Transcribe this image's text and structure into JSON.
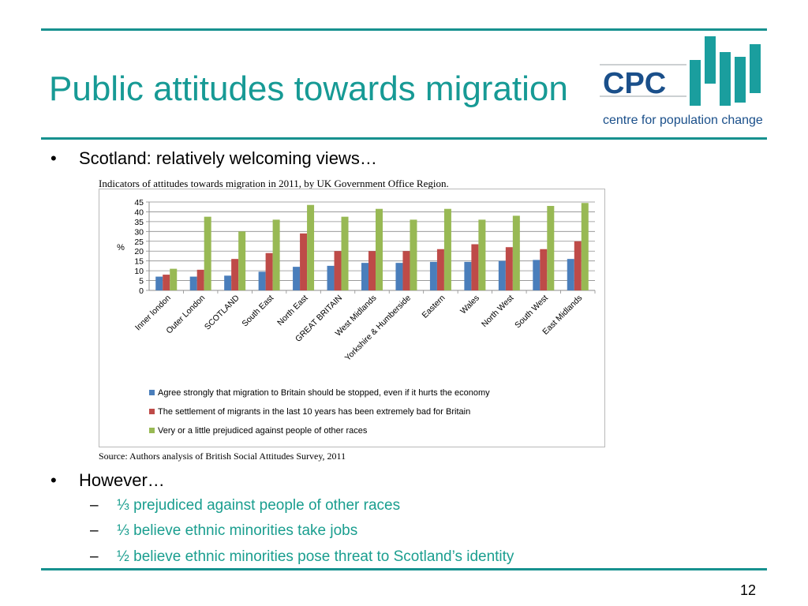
{
  "slide": {
    "title": "Public attitudes towards migration",
    "bullet1": "Scotland: relatively welcoming views…",
    "bullet2": "However…",
    "subpoints": [
      "⅓ prejudiced against people of other races",
      "⅓ believe ethnic minorities take jobs",
      "½ believe ethnic minorities pose threat to Scotland’s identity"
    ],
    "bullet_symbol": "•",
    "dash_symbol": "–",
    "page_number": "12",
    "accent_color": "#17918f"
  },
  "logo": {
    "initials": "CPC",
    "tagline": "centre for population change"
  },
  "figure": {
    "caption": "Indicators of attitudes towards migration in 2011, by UK Government Office Region.",
    "source": "Source: Authors analysis of British Social Attitudes Survey, 2011"
  },
  "chart_data": {
    "type": "bar",
    "ylabel": "%",
    "ylim": [
      0,
      45
    ],
    "yticks": [
      0,
      5,
      10,
      15,
      20,
      25,
      30,
      35,
      40,
      45
    ],
    "grid": true,
    "legend_position": "bottom",
    "categories": [
      "Inner london",
      "Outer London",
      "SCOTLAND",
      "South East",
      "North East",
      "GREAT BRITAIN",
      "West Midlands",
      "Yorkshire & Humberside",
      "Eastern",
      "Wales",
      "North West",
      "South West",
      "East Midlands"
    ],
    "series": [
      {
        "name": "Agree strongly that migration to Britain should be stopped, even if it hurts the economy",
        "color": "#4a7ebb",
        "values": [
          7,
          7,
          7.5,
          9.5,
          12,
          12.5,
          14,
          14,
          14.5,
          14.5,
          15,
          15.5,
          16
        ]
      },
      {
        "name": "The settlement of migrants in the last 10 years has been extremely bad for Britain",
        "color": "#be4b48",
        "values": [
          8,
          10.5,
          16,
          19,
          29,
          20,
          20,
          20,
          21,
          23.5,
          22,
          21,
          25
        ]
      },
      {
        "name": "Very or a little prejudiced against people of other races",
        "color": "#98b954",
        "values": [
          11,
          37.5,
          30,
          36,
          43.5,
          37.5,
          41.5,
          36,
          41.5,
          36,
          38,
          43,
          44.5
        ]
      }
    ]
  }
}
